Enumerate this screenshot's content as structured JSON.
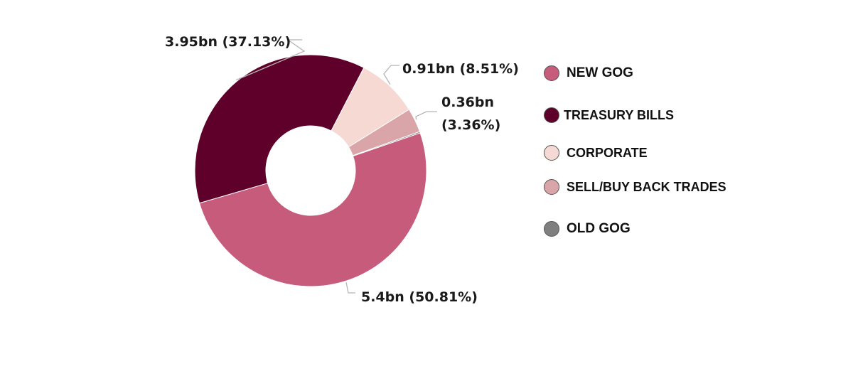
{
  "chart_data": {
    "type": "pie",
    "donut": true,
    "legend_position": "right",
    "slices": [
      {
        "name": "NEW GOG",
        "value": 5.4,
        "percent": 50.81,
        "label": "5.4bn (50.81%)",
        "color": "#c65b7c"
      },
      {
        "name": "TREASURY BILLS",
        "value": 3.95,
        "percent": 37.13,
        "label": "3.95bn (37.13%)",
        "color": "#5e0029"
      },
      {
        "name": "CORPORATE",
        "value": 0.91,
        "percent": 8.51,
        "label": "0.91bn (8.51%)",
        "color": "#f5d9d2"
      },
      {
        "name": "SELL/BUY BACK TRADES",
        "value": 0.36,
        "percent": 3.36,
        "label_lines": [
          "0.36bn",
          "(3.36%)"
        ],
        "color": "#d9a5a8"
      },
      {
        "name": "OLD GOG",
        "value": 0.02,
        "percent": 0.19,
        "color": "#7f7f7f"
      }
    ],
    "legend": [
      {
        "name": "NEW GOG",
        "color": "#c65b7c"
      },
      {
        "name": "TREASURY BILLS",
        "color": "#5e0029"
      },
      {
        "name": "CORPORATE",
        "color": "#f5d9d2"
      },
      {
        "name": "SELL/BUY BACK TRADES",
        "color": "#d9a5a8"
      },
      {
        "name": "OLD GOG",
        "color": "#7f7f7f"
      }
    ]
  }
}
